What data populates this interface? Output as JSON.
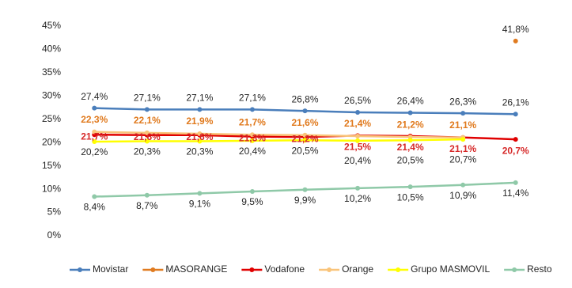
{
  "chart_data": {
    "type": "line",
    "categories": [
      null,
      null,
      null,
      null,
      null,
      null,
      null,
      null,
      null
    ],
    "ylim": [
      0,
      45
    ],
    "yticks": [
      {
        "value": 0,
        "label": "0%"
      },
      {
        "value": 5,
        "label": "5%"
      },
      {
        "value": 10,
        "label": "10%"
      },
      {
        "value": 15,
        "label": "15%"
      },
      {
        "value": 20,
        "label": "20%"
      },
      {
        "value": 25,
        "label": "25%"
      },
      {
        "value": 30,
        "label": "30%"
      },
      {
        "value": 35,
        "label": "35%"
      },
      {
        "value": 40,
        "label": "40%"
      },
      {
        "value": 45,
        "label": "45%"
      }
    ],
    "grid": false,
    "legend": "bottom",
    "series": [
      {
        "name": "Movistar",
        "color": "#4a7ebb",
        "label_color": "#262626",
        "values": [
          27.4,
          27.1,
          27.1,
          27.1,
          26.8,
          26.5,
          26.4,
          26.3,
          26.1
        ],
        "value_labels": [
          "27,4%",
          "27,1%",
          "27,1%",
          "27,1%",
          "26,8%",
          "26,5%",
          "26,4%",
          "26,3%",
          "26,1%"
        ]
      },
      {
        "name": "MASORANGE",
        "color": "#e07b20",
        "label_color": "#262626",
        "values": [
          null,
          null,
          null,
          null,
          null,
          null,
          null,
          null,
          41.8
        ],
        "value_labels": [
          null,
          null,
          null,
          null,
          null,
          null,
          null,
          null,
          "41,8%"
        ]
      },
      {
        "name": "Vodafone",
        "color": "#e00000",
        "label_color": "#d62828",
        "values": [
          21.7,
          21.6,
          21.6,
          21.3,
          21.2,
          21.5,
          21.4,
          21.1,
          20.7
        ],
        "value_labels": [
          "21,7%",
          "21,6%",
          "21,6%",
          "21,3%",
          "21,2%",
          "21,5%",
          "21,4%",
          "21,1%",
          "20,7%"
        ]
      },
      {
        "name": "Orange",
        "color": "#f9c47a",
        "label_color": "#e0791c",
        "values": [
          22.3,
          22.1,
          21.9,
          21.7,
          21.6,
          21.4,
          21.2,
          21.1,
          null
        ],
        "value_labels": [
          "22,3%",
          "22,1%",
          "21,9%",
          "21,7%",
          "21,6%",
          "21,4%",
          "21,2%",
          "21,1%",
          null
        ]
      },
      {
        "name": "Grupo MASMOVIL",
        "color": "#ffff00",
        "label_color": "#262626",
        "values": [
          20.2,
          20.3,
          20.3,
          20.4,
          20.5,
          20.4,
          20.5,
          20.7,
          null
        ],
        "value_labels": [
          "20,2%",
          "20,3%",
          "20,3%",
          "20,4%",
          "20,5%",
          "20,4%",
          "20,5%",
          "20,7%",
          null
        ]
      },
      {
        "name": "Resto",
        "color": "#8fc9a8",
        "label_color": "#262626",
        "values": [
          8.4,
          8.7,
          9.1,
          9.5,
          9.9,
          10.2,
          10.5,
          10.9,
          11.4
        ],
        "value_labels": [
          "8,4%",
          "8,7%",
          "9,1%",
          "9,5%",
          "9,9%",
          "10,2%",
          "10,5%",
          "10,9%",
          "11,4%"
        ]
      }
    ]
  }
}
